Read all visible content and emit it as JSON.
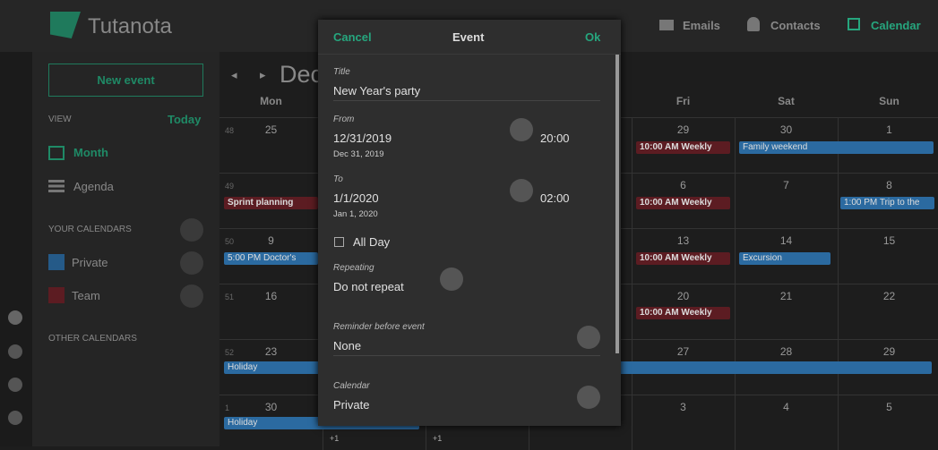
{
  "header": {
    "logo": "Tutanota",
    "nav": [
      "Emails",
      "Contacts",
      "Calendar"
    ]
  },
  "sidebar": {
    "new_event": "New event",
    "view": "VIEW",
    "today": "Today",
    "views": [
      "Month",
      "Agenda"
    ],
    "your_calendars": "YOUR CALENDARS",
    "calendars": [
      "Private",
      "Team"
    ],
    "other_calendars": "OTHER CALENDARS"
  },
  "calendar": {
    "month": "Dec",
    "weekdays": [
      "Mon",
      null,
      null,
      null,
      "Fri",
      "Sat",
      "Sun"
    ],
    "weeks": [
      {
        "number": "48",
        "days": [
          "25",
          null,
          null,
          null,
          "29",
          "30",
          "1"
        ]
      },
      {
        "number": "49",
        "days": [
          null,
          null,
          null,
          null,
          "6",
          "7",
          "8"
        ]
      },
      {
        "number": "50",
        "days": [
          "9",
          null,
          null,
          null,
          "13",
          "14",
          "15"
        ]
      },
      {
        "number": "51",
        "days": [
          "16",
          null,
          null,
          null,
          "20",
          "21",
          "22"
        ]
      },
      {
        "number": "52",
        "days": [
          "23",
          null,
          null,
          null,
          "27",
          "28",
          "29"
        ]
      },
      {
        "number": "1",
        "days": [
          "30",
          null,
          null,
          null,
          "3",
          "4",
          "5"
        ]
      }
    ],
    "events": [
      "10:00 AM Weekly",
      "Family weekend",
      "Sprint planning",
      "10:00 AM Weekly",
      "1:00 PM Trip to the",
      "5:00 PM Doctor's",
      "10:00 AM Weekly",
      "Excursion",
      "10:00 AM Weekly",
      "Holiday",
      "Holiday"
    ],
    "more": [
      "+1",
      "+1"
    ]
  },
  "dialog": {
    "cancel": "Cancel",
    "title": "Event",
    "ok": "Ok",
    "title_label": "Title",
    "title_value": "New Year's party",
    "from_label": "From",
    "from_date": "12/31/2019",
    "from_sub": "Dec 31, 2019",
    "from_time": "20:00",
    "to_label": "To",
    "to_date": "1/1/2020",
    "to_sub": "Jan 1, 2020",
    "to_time": "02:00",
    "all_day": "All Day",
    "repeat_label": "Repeating",
    "repeat_value": "Do not repeat",
    "reminder_label": "Reminder before event",
    "reminder_value": "None",
    "calendar_label": "Calendar",
    "calendar_value": "Private"
  }
}
